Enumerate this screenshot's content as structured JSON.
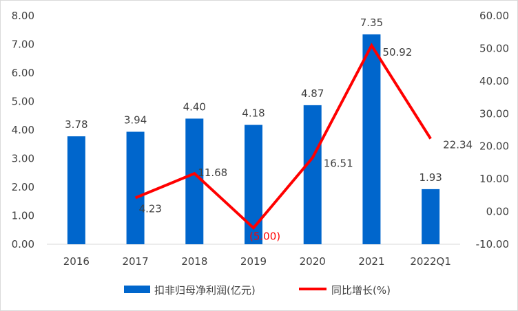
{
  "chart_data": {
    "type": "bar",
    "categories": [
      "2016",
      "2017",
      "2018",
      "2019",
      "2020",
      "2021",
      "2022Q1"
    ],
    "series": [
      {
        "name": "扣非归母净利润(亿元)",
        "type": "bar",
        "axis": "left",
        "color": "#0066CC",
        "values": [
          3.78,
          3.94,
          4.4,
          4.18,
          4.87,
          7.35,
          1.93
        ],
        "labels": [
          "3.78",
          "3.94",
          "4.40",
          "4.18",
          "4.87",
          "7.35",
          "1.93"
        ]
      },
      {
        "name": "同比增长(%)",
        "type": "line",
        "axis": "right",
        "color": "#FF0000",
        "values": [
          null,
          4.23,
          11.68,
          -5.0,
          16.51,
          50.92,
          22.34
        ],
        "labels": [
          null,
          "4.23",
          "11.68",
          "(5.00)",
          "16.51",
          "50.92",
          "22.34"
        ],
        "label_colors": [
          null,
          "#404040",
          "#404040",
          "#FF0000",
          "#404040",
          "#404040",
          "#404040"
        ]
      }
    ],
    "ylim_left": [
      0,
      8
    ],
    "ylim_right": [
      -10,
      60
    ],
    "left_ticks": [
      "0.00",
      "1.00",
      "2.00",
      "3.00",
      "4.00",
      "5.00",
      "6.00",
      "7.00",
      "8.00"
    ],
    "right_ticks": [
      "-10.00",
      "0.00",
      "10.00",
      "20.00",
      "30.00",
      "40.00",
      "50.00",
      "60.00"
    ],
    "legend_position": "bottom",
    "grid": false
  }
}
